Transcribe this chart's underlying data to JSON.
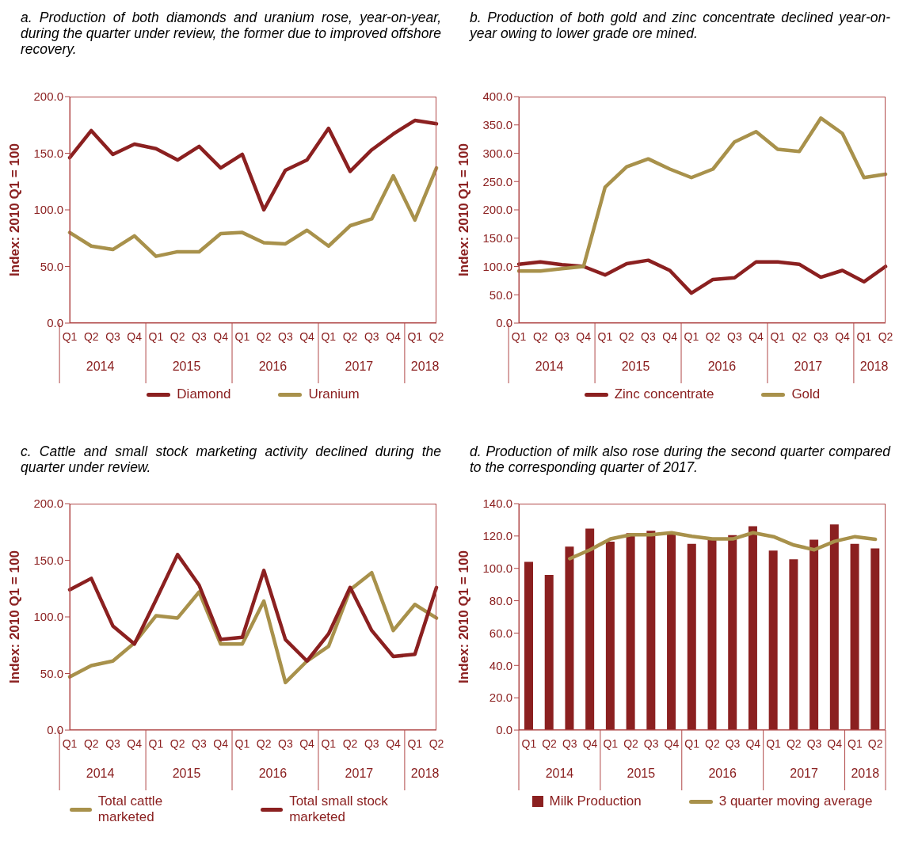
{
  "chart_data": [
    {
      "type": "line",
      "title": "a. Production of both diamonds and uranium rose, year-on-year, during the quarter under review, the former due to improved offshore recovery.",
      "ylabel": "Index: 2010 Q1 = 100",
      "categories": [
        "Q1",
        "Q2",
        "Q3",
        "Q4",
        "Q1",
        "Q2",
        "Q3",
        "Q4",
        "Q1",
        "Q2",
        "Q3",
        "Q4",
        "Q1",
        "Q2",
        "Q3",
        "Q4",
        "Q1",
        "Q2"
      ],
      "annotations": [
        "2014",
        "2015",
        "2016",
        "2017",
        "2018"
      ],
      "ylim": [
        0,
        200
      ],
      "yticks": [
        {
          "value": 0,
          "label": "0.0"
        },
        {
          "value": 50,
          "label": "50.0"
        },
        {
          "value": 100,
          "label": "100.0"
        },
        {
          "value": 150,
          "label": "150.0"
        },
        {
          "value": 200,
          "label": "200.0"
        }
      ],
      "legend": "bottom",
      "series": [
        {
          "name": "Diamond",
          "color": "#8b2020",
          "values": [
            146,
            170,
            149,
            158,
            154,
            144,
            156,
            137,
            149,
            100,
            135,
            144,
            172,
            134,
            153,
            167,
            179,
            176
          ]
        },
        {
          "name": "Uranium",
          "color": "#a8914b",
          "values": [
            80,
            68,
            65,
            77,
            59,
            63,
            63,
            79,
            80,
            71,
            70,
            82,
            68,
            86,
            92,
            130,
            91,
            137
          ]
        }
      ]
    },
    {
      "type": "line",
      "title": "b. Production of both gold and zinc concentrate declined year-on-year owing to lower grade ore mined.",
      "ylabel": "Index: 2010 Q1 = 100",
      "categories": [
        "Q1",
        "Q2",
        "Q3",
        "Q4",
        "Q1",
        "Q2",
        "Q3",
        "Q4",
        "Q1",
        "Q2",
        "Q3",
        "Q4",
        "Q1",
        "Q2",
        "Q3",
        "Q4",
        "Q1",
        "Q2"
      ],
      "annotations": [
        "2014",
        "2015",
        "2016",
        "2017",
        "2018"
      ],
      "ylim": [
        0,
        400
      ],
      "yticks": [
        {
          "value": 0,
          "label": "0.0"
        },
        {
          "value": 50,
          "label": "50.0"
        },
        {
          "value": 100,
          "label": "100.0"
        },
        {
          "value": 150,
          "label": "150.0"
        },
        {
          "value": 200,
          "label": "200.0"
        },
        {
          "value": 250,
          "label": "250.0"
        },
        {
          "value": 300,
          "label": "300.0"
        },
        {
          "value": 350,
          "label": "350.0"
        },
        {
          "value": 400,
          "label": "400.0"
        }
      ],
      "legend": "bottom",
      "series": [
        {
          "name": "Zinc concentrate",
          "color": "#8b2020",
          "values": [
            104,
            108,
            103,
            100,
            85,
            105,
            111,
            93,
            53,
            77,
            80,
            108,
            108,
            104,
            81,
            93,
            73,
            100
          ]
        },
        {
          "name": "Gold",
          "color": "#a8914b",
          "values": [
            92,
            92,
            96,
            100,
            240,
            276,
            290,
            272,
            257,
            272,
            320,
            338,
            307,
            303,
            362,
            335,
            257,
            263
          ]
        }
      ]
    },
    {
      "type": "line",
      "title": "c. Cattle and small stock marketing activity declined during the quarter under review.",
      "ylabel": "Index: 2010 Q1 = 100",
      "categories": [
        "Q1",
        "Q2",
        "Q3",
        "Q4",
        "Q1",
        "Q2",
        "Q3",
        "Q4",
        "Q1",
        "Q2",
        "Q3",
        "Q4",
        "Q1",
        "Q2",
        "Q3",
        "Q4",
        "Q1",
        "Q2"
      ],
      "annotations": [
        "2014",
        "2015",
        "2016",
        "2017",
        "2018"
      ],
      "ylim": [
        0,
        200
      ],
      "yticks": [
        {
          "value": 0,
          "label": "0.0"
        },
        {
          "value": 50,
          "label": "50.0"
        },
        {
          "value": 100,
          "label": "100.0"
        },
        {
          "value": 150,
          "label": "150.0"
        },
        {
          "value": 200,
          "label": "200.0"
        }
      ],
      "legend": "bottom",
      "series": [
        {
          "name": "Total cattle marketed",
          "color": "#a8914b",
          "values": [
            47,
            57,
            61,
            77,
            101,
            99,
            122,
            76,
            76,
            114,
            42,
            61,
            74,
            124,
            139,
            88,
            111,
            99
          ]
        },
        {
          "name": "Total small stock marketed",
          "color": "#8b2020",
          "values": [
            124,
            134,
            92,
            76,
            115,
            155,
            128,
            80,
            82,
            141,
            80,
            61,
            85,
            126,
            88,
            65,
            67,
            126
          ]
        }
      ]
    },
    {
      "type": "bar",
      "title": "d. Production of milk also rose during the second quarter compared to the corresponding quarter of 2017.",
      "ylabel": "Index: 2010 Q1 = 100",
      "categories": [
        "Q1",
        "Q2",
        "Q3",
        "Q4",
        "Q1",
        "Q2",
        "Q3",
        "Q4",
        "Q1",
        "Q2",
        "Q3",
        "Q4",
        "Q1",
        "Q2",
        "Q3",
        "Q4",
        "Q1",
        "Q2"
      ],
      "annotations": [
        "2014",
        "2015",
        "2016",
        "2017",
        "2018"
      ],
      "ylim": [
        0,
        140
      ],
      "yticks": [
        {
          "value": 0,
          "label": "0.0"
        },
        {
          "value": 20,
          "label": "20.0"
        },
        {
          "value": 40,
          "label": "40.0"
        },
        {
          "value": 60,
          "label": "60.0"
        },
        {
          "value": 80,
          "label": "80.0"
        },
        {
          "value": 100,
          "label": "100.0"
        },
        {
          "value": 120,
          "label": "120.0"
        },
        {
          "value": 140,
          "label": "140.0"
        }
      ],
      "legend": "bottom",
      "series": [
        {
          "name": "Milk Production",
          "color": "#8b2020",
          "values": [
            104,
            96,
            113.5,
            124.6,
            116.5,
            121.8,
            123.2,
            121,
            115.1,
            117.5,
            120.5,
            126,
            111,
            105.6,
            117.7,
            127.2,
            115.1,
            112.3
          ]
        },
        {
          "name": "3 quarter moving average",
          "type": "line",
          "color": "#a8914b",
          "values": [
            null,
            null,
            106,
            111.5,
            118.2,
            120.8,
            120.8,
            122,
            119.8,
            118.2,
            118.2,
            122,
            119.6,
            114.4,
            111.5,
            116.7,
            119.6,
            118
          ]
        }
      ]
    }
  ]
}
